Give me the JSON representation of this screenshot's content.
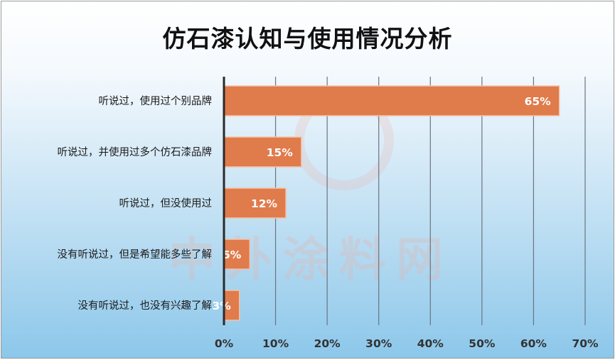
{
  "chart_data": {
    "type": "bar",
    "orientation": "horizontal",
    "title": "仿石漆认知与使用情况分析",
    "categories": [
      "听说过，使用过个别品牌",
      "听说过，并使用过多个仿石漆品牌",
      "听说过，但没使用过",
      "没有听说过，但是希望能多些了解",
      "没有听说过，也没有兴趣了解"
    ],
    "values": [
      65,
      15,
      12,
      5,
      3
    ],
    "value_labels": [
      "65%",
      "15%",
      "12%",
      "5%",
      "3%"
    ],
    "xlim": [
      0,
      70
    ],
    "xticks": [
      "0%",
      "10%",
      "20%",
      "30%",
      "40%",
      "50%",
      "60%",
      "70%"
    ],
    "grid": "vertical",
    "bar_color": "#e07b4c",
    "watermark": "中外涂料网"
  }
}
